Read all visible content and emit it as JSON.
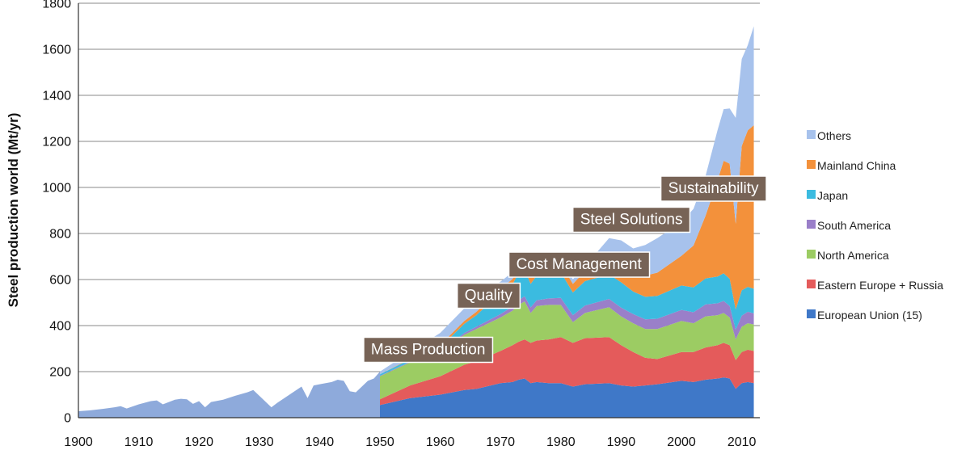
{
  "chart_data": {
    "type": "area",
    "stacked": true,
    "title": "",
    "xlabel": "",
    "ylabel": "Steel production world (Mt/yr)",
    "xlim": [
      1900,
      2013
    ],
    "ylim": [
      0,
      1800
    ],
    "x_ticks": [
      1900,
      1910,
      1920,
      1930,
      1940,
      1950,
      1960,
      1970,
      1980,
      1990,
      2000,
      2010
    ],
    "y_ticks": [
      0,
      200,
      400,
      600,
      800,
      1000,
      1200,
      1400,
      1600,
      1800
    ],
    "grid": "horizontal",
    "legend": "right",
    "world_pre1950": {
      "x": [
        1900,
        1902,
        1904,
        1906,
        1907,
        1908,
        1910,
        1912,
        1913,
        1914,
        1916,
        1917,
        1918,
        1919,
        1920,
        1921,
        1922,
        1924,
        1926,
        1928,
        1929,
        1930,
        1931,
        1932,
        1933,
        1935,
        1937,
        1938,
        1939,
        1940,
        1942,
        1943,
        1944,
        1945,
        1946,
        1947,
        1948,
        1949
      ],
      "values": [
        28,
        32,
        38,
        45,
        50,
        40,
        58,
        72,
        75,
        58,
        78,
        82,
        80,
        60,
        72,
        45,
        68,
        78,
        95,
        110,
        120,
        95,
        70,
        45,
        65,
        100,
        135,
        85,
        140,
        145,
        155,
        165,
        160,
        115,
        110,
        135,
        160,
        170
      ],
      "color": "#8eaadb"
    },
    "x": [
      1950,
      1955,
      1960,
      1964,
      1966,
      1970,
      1972,
      1973,
      1974,
      1975,
      1976,
      1978,
      1980,
      1982,
      1984,
      1988,
      1990,
      1992,
      1994,
      1996,
      2000,
      2002,
      2004,
      2006,
      2007,
      2008,
      2009,
      2010,
      2011,
      2012
    ],
    "series": [
      {
        "name": "European Union (15)",
        "color": "#3f78c8",
        "values": [
          55,
          85,
          100,
          120,
          125,
          150,
          155,
          165,
          170,
          150,
          155,
          150,
          150,
          135,
          145,
          150,
          140,
          135,
          140,
          145,
          160,
          155,
          165,
          170,
          175,
          170,
          125,
          150,
          155,
          150
        ]
      },
      {
        "name": "Eastern Europe + Russia",
        "color": "#e45b5b",
        "values": [
          25,
          55,
          80,
          110,
          120,
          140,
          160,
          165,
          170,
          175,
          180,
          190,
          200,
          190,
          200,
          200,
          175,
          150,
          120,
          110,
          125,
          130,
          140,
          145,
          150,
          145,
          125,
          135,
          140,
          140
        ]
      },
      {
        "name": "North America",
        "color": "#9ccc63",
        "values": [
          100,
          100,
          100,
          130,
          140,
          145,
          150,
          160,
          165,
          130,
          150,
          150,
          140,
          90,
          110,
          130,
          125,
          125,
          125,
          130,
          135,
          125,
          135,
          130,
          130,
          120,
          90,
          110,
          115,
          115
        ]
      },
      {
        "name": "South America",
        "color": "#9a7fc9",
        "values": [
          2,
          3,
          4,
          8,
          10,
          15,
          18,
          20,
          22,
          24,
          25,
          28,
          30,
          30,
          32,
          36,
          38,
          40,
          42,
          45,
          48,
          48,
          52,
          52,
          52,
          50,
          42,
          48,
          50,
          48
        ]
      },
      {
        "name": "Japan",
        "color": "#3bbbe0",
        "values": [
          6,
          10,
          22,
          40,
          50,
          93,
          97,
          119,
          117,
          102,
          107,
          102,
          111,
          99,
          106,
          106,
          110,
          98,
          98,
          99,
          106,
          108,
          113,
          116,
          120,
          118,
          88,
          110,
          108,
          107
        ]
      },
      {
        "name": "Mainland China",
        "color": "#f3913b",
        "values": [
          0,
          3,
          10,
          12,
          15,
          18,
          22,
          25,
          26,
          30,
          28,
          32,
          37,
          37,
          43,
          59,
          66,
          80,
          92,
          101,
          129,
          182,
          272,
          419,
          489,
          500,
          372,
          627,
          680,
          710
        ]
      },
      {
        "name": "Others",
        "color": "#a7c2ec",
        "values": [
          12,
          30,
          52,
          55,
          55,
          30,
          30,
          43,
          36,
          24,
          24,
          16,
          21,
          20,
          22,
          99,
          116,
          107,
          133,
          150,
          146,
          159,
          173,
          218,
          224,
          240,
          460,
          378,
          370,
          430
        ]
      }
    ],
    "annotations": [
      {
        "text": "Mass Production",
        "x": 1958,
        "y": 300
      },
      {
        "text": "Quality",
        "x": 1968,
        "y": 535
      },
      {
        "text": "Cost Management",
        "x": 1983,
        "y": 670
      },
      {
        "text": "Steel Solutions",
        "x": 1991.7,
        "y": 865
      },
      {
        "text": "Sustainability",
        "x": 2005.3,
        "y": 1000
      }
    ]
  }
}
